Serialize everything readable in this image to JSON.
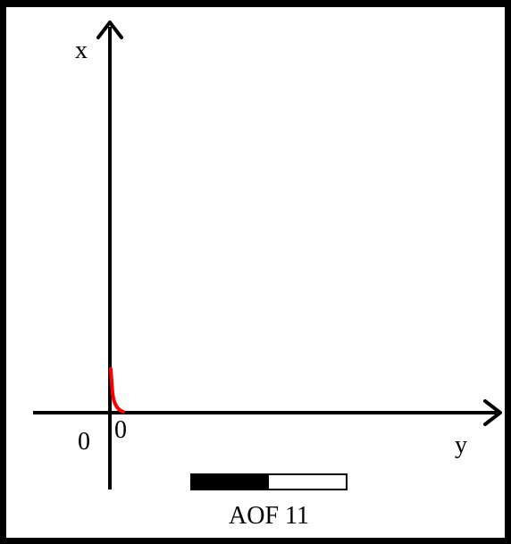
{
  "diagram": {
    "vertical_axis_label": "x",
    "horizontal_axis_label": "y",
    "origin_label_left": "0",
    "origin_label_right": "0",
    "caption": "AOF 11",
    "progress_fraction": 0.5,
    "colors": {
      "background": "#ffffff",
      "frame": "#000000",
      "axes": "#000000",
      "curve": "#ff0000",
      "progress_fill": "#000000",
      "progress_empty": "#ffffff"
    }
  }
}
